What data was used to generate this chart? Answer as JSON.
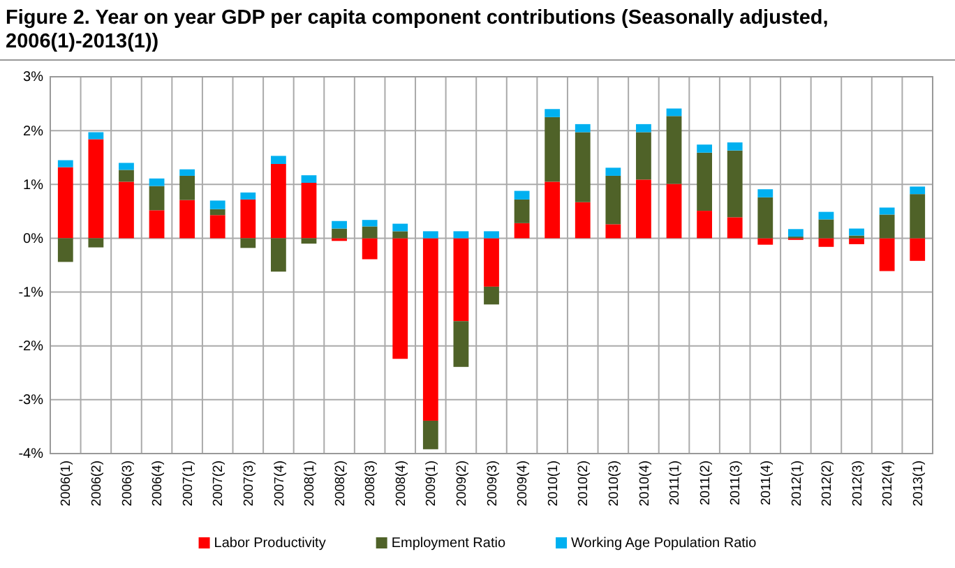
{
  "chart_data": {
    "type": "bar",
    "title": "Figure 2. Year on year GDP per capita component contributions (Seasonally adjusted, 2006(1)-2013(1))",
    "categories": [
      "2006(1)",
      "2006(2)",
      "2006(3)",
      "2006(4)",
      "2007(1)",
      "2007(2)",
      "2007(3)",
      "2007(4)",
      "2008(1)",
      "2008(2)",
      "2008(3)",
      "2008(4)",
      "2009(1)",
      "2009(2)",
      "2009(3)",
      "2009(4)",
      "2010(1)",
      "2010(2)",
      "2010(3)",
      "2010(4)",
      "2011(1)",
      "2011(2)",
      "2011(3)",
      "2011(4)",
      "2012(1)",
      "2012(2)",
      "2012(3)",
      "2012(4)",
      "2013(1)"
    ],
    "series": [
      {
        "name": "Labor Productivity",
        "color": "#ff0000",
        "values": [
          1.32,
          1.84,
          1.05,
          0.52,
          0.71,
          0.43,
          0.72,
          1.38,
          1.03,
          -0.05,
          -0.39,
          -2.24,
          -3.39,
          -1.54,
          -0.9,
          0.28,
          1.05,
          0.67,
          0.26,
          1.09,
          1.01,
          0.51,
          0.39,
          -0.12,
          -0.03,
          -0.16,
          -0.11,
          -0.61,
          -0.42
        ]
      },
      {
        "name": "Employment Ratio",
        "color": "#4f6228",
        "values": [
          -0.44,
          -0.17,
          0.22,
          0.45,
          0.45,
          0.11,
          -0.18,
          -0.62,
          -0.1,
          0.18,
          0.22,
          0.13,
          -0.53,
          -0.85,
          -0.33,
          0.44,
          1.2,
          1.3,
          0.9,
          0.88,
          1.26,
          1.08,
          1.24,
          0.76,
          0.03,
          0.35,
          0.05,
          0.44,
          0.82
        ]
      },
      {
        "name": "Working Age Population Ratio",
        "color": "#00b0f0",
        "values": [
          0.13,
          0.13,
          0.13,
          0.14,
          0.12,
          0.16,
          0.13,
          0.15,
          0.14,
          0.14,
          0.12,
          0.14,
          0.13,
          0.13,
          0.13,
          0.16,
          0.15,
          0.15,
          0.15,
          0.15,
          0.14,
          0.15,
          0.15,
          0.15,
          0.14,
          0.14,
          0.13,
          0.13,
          0.14
        ]
      }
    ],
    "stacked": true,
    "ylim": [
      -4,
      3
    ],
    "yticks": [
      {
        "value": -4,
        "label": "-4%"
      },
      {
        "value": -3,
        "label": "-3%"
      },
      {
        "value": -2,
        "label": "-2%"
      },
      {
        "value": -1,
        "label": "-1%"
      },
      {
        "value": 0,
        "label": "0%"
      },
      {
        "value": 1,
        "label": "1%"
      },
      {
        "value": 2,
        "label": "2%"
      },
      {
        "value": 3,
        "label": "3%"
      }
    ],
    "grid": true,
    "legend": "bottom"
  }
}
